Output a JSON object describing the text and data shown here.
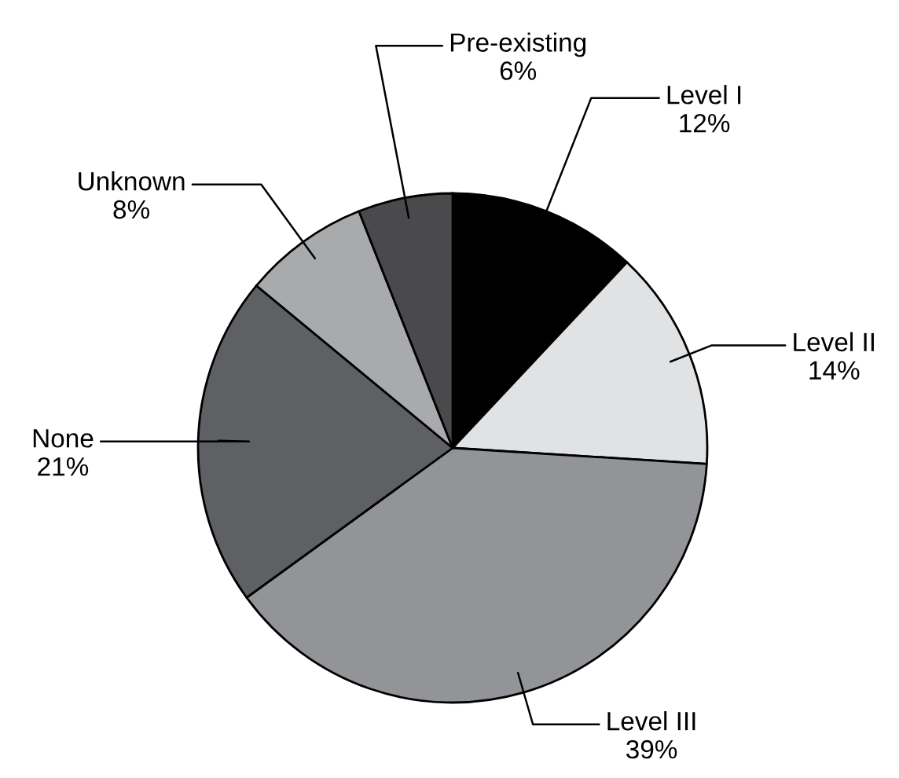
{
  "chart_data": {
    "type": "pie",
    "categories": [
      "Level I",
      "Level II",
      "Level III",
      "None",
      "Unknown",
      "Pre-existing"
    ],
    "values": [
      12,
      14,
      39,
      21,
      8,
      6
    ],
    "value_labels": [
      "12%",
      "14%",
      "39%",
      "21%",
      "8%",
      "6%"
    ],
    "colors": [
      "#000000",
      "#e1e2e4",
      "#939498",
      "#5f6064",
      "#a9aaac",
      "#4a4a4c"
    ]
  }
}
